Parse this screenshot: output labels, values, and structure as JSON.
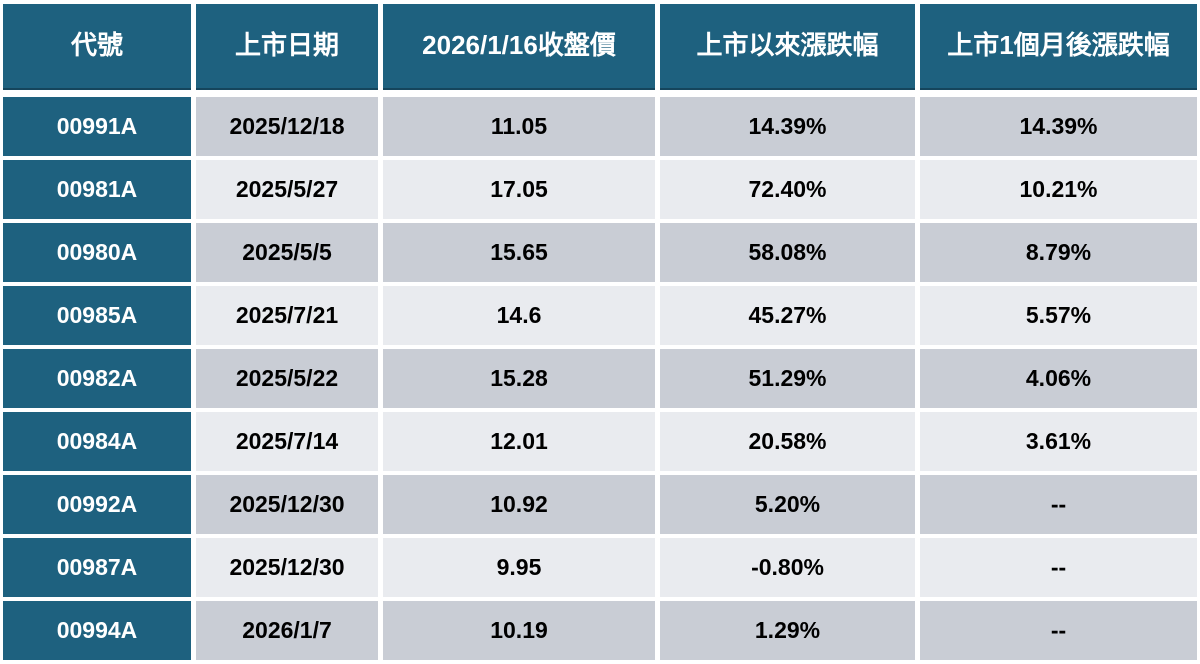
{
  "colors": {
    "header_bg": "#1E617F",
    "code_cell_bg": "#1E617F",
    "row_dark_bg": "#C9CDD5",
    "row_light_bg": "#E9EBEF",
    "header_text": "#FFFFFF",
    "data_text": "#000000"
  },
  "table": {
    "columns": [
      "代號",
      "上市日期",
      "2026/1/16收盤價",
      "上市以來漲跌幅",
      "上市1個月後漲跌幅"
    ],
    "rows": [
      {
        "code": "00991A",
        "listing_date": "2025/12/18",
        "close_price": "11.05",
        "change_since_listing": "14.39%",
        "change_1m_after_listing": "14.39%"
      },
      {
        "code": "00981A",
        "listing_date": "2025/5/27",
        "close_price": "17.05",
        "change_since_listing": "72.40%",
        "change_1m_after_listing": "10.21%"
      },
      {
        "code": "00980A",
        "listing_date": "2025/5/5",
        "close_price": "15.65",
        "change_since_listing": "58.08%",
        "change_1m_after_listing": "8.79%"
      },
      {
        "code": "00985A",
        "listing_date": "2025/7/21",
        "close_price": "14.6",
        "change_since_listing": "45.27%",
        "change_1m_after_listing": "5.57%"
      },
      {
        "code": "00982A",
        "listing_date": "2025/5/22",
        "close_price": "15.28",
        "change_since_listing": "51.29%",
        "change_1m_after_listing": "4.06%"
      },
      {
        "code": "00984A",
        "listing_date": "2025/7/14",
        "close_price": "12.01",
        "change_since_listing": "20.58%",
        "change_1m_after_listing": "3.61%"
      },
      {
        "code": "00992A",
        "listing_date": "2025/12/30",
        "close_price": "10.92",
        "change_since_listing": "5.20%",
        "change_1m_after_listing": "--"
      },
      {
        "code": "00987A",
        "listing_date": "2025/12/30",
        "close_price": "9.95",
        "change_since_listing": "-0.80%",
        "change_1m_after_listing": "--"
      },
      {
        "code": "00994A",
        "listing_date": "2026/1/7",
        "close_price": "10.19",
        "change_since_listing": "1.29%",
        "change_1m_after_listing": "--"
      }
    ]
  },
  "chart_data": {
    "type": "table",
    "title": "",
    "columns": [
      "代號",
      "上市日期",
      "2026/1/16收盤價",
      "上市以來漲跌幅",
      "上市1個月後漲跌幅"
    ],
    "rows": [
      [
        "00991A",
        "2025/12/18",
        "11.05",
        "14.39%",
        "14.39%"
      ],
      [
        "00981A",
        "2025/5/27",
        "17.05",
        "72.40%",
        "10.21%"
      ],
      [
        "00980A",
        "2025/5/5",
        "15.65",
        "58.08%",
        "8.79%"
      ],
      [
        "00985A",
        "2025/7/21",
        "14.6",
        "45.27%",
        "5.57%"
      ],
      [
        "00982A",
        "2025/5/22",
        "15.28",
        "51.29%",
        "4.06%"
      ],
      [
        "00984A",
        "2025/7/14",
        "12.01",
        "20.58%",
        "3.61%"
      ],
      [
        "00992A",
        "2025/12/30",
        "10.92",
        "5.20%",
        "--"
      ],
      [
        "00987A",
        "2025/12/30",
        "9.95",
        "-0.80%",
        "--"
      ],
      [
        "00994A",
        "2026/1/7",
        "10.19",
        "1.29%",
        "--"
      ]
    ],
    "layout_hints": {
      "alternating_row_bands": [
        "dark",
        "light"
      ],
      "first_column_style": "teal header-colored",
      "numeric_precision": "2 decimals for percentages"
    }
  }
}
